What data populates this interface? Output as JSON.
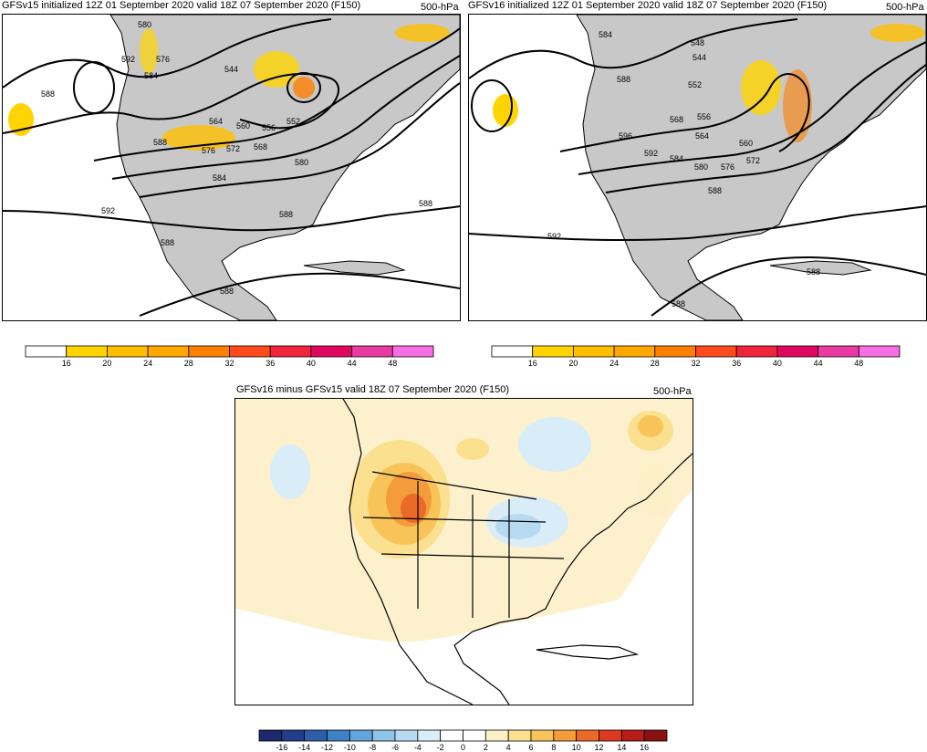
{
  "panels": {
    "gfsv15": {
      "title": "GFSv15 initialized 12Z 01 September 2020 valid 18Z 07 September 2020 (F150)",
      "level": "500-hPa",
      "contour_labels": [
        "580",
        "592",
        "576",
        "584",
        "544",
        "588",
        "564",
        "560",
        "556",
        "552",
        "588",
        "576",
        "572",
        "568",
        "580",
        "584",
        "592",
        "588",
        "588",
        "588",
        "588"
      ]
    },
    "gfsv16": {
      "title": "GFSv16 initialized 12Z 01 September 2020 valid 18Z 07 September 2020 (F150)",
      "level": "500-hPa",
      "contour_labels": [
        "584",
        "548",
        "544",
        "588",
        "552",
        "568",
        "556",
        "564",
        "596",
        "592",
        "584",
        "580",
        "576",
        "572",
        "560",
        "588",
        "592",
        "588",
        "588"
      ]
    },
    "diff": {
      "title": "GFSv16 minus GFSv15 valid 18Z 07 September 2020 (F150)",
      "level": "500-hPa"
    }
  },
  "colorbar_top": {
    "ticks": [
      "16",
      "20",
      "24",
      "28",
      "32",
      "36",
      "40",
      "44",
      "48"
    ],
    "colors": [
      "#ffffff",
      "#ffd400",
      "#ffbf00",
      "#ffa800",
      "#ff7f00",
      "#ff4a1c",
      "#f0243c",
      "#e0085e",
      "#e83aa0",
      "#f56ee6"
    ]
  },
  "colorbar_diff": {
    "ticks": [
      "-16",
      "-14",
      "-12",
      "-10",
      "-8",
      "-6",
      "-4",
      "-2",
      "0",
      "2",
      "4",
      "6",
      "8",
      "10",
      "12",
      "14",
      "16"
    ],
    "colors": [
      "#1c2a6b",
      "#233d8c",
      "#2f5ea8",
      "#3e82c6",
      "#62a6dd",
      "#8ec3ea",
      "#b7daf2",
      "#d9edf8",
      "#ffffff",
      "#ffffff",
      "#fdf0c8",
      "#fbe08f",
      "#f8c45a",
      "#f49b3b",
      "#ec6a28",
      "#dc3a1f",
      "#b81d18",
      "#8a1111"
    ]
  }
}
